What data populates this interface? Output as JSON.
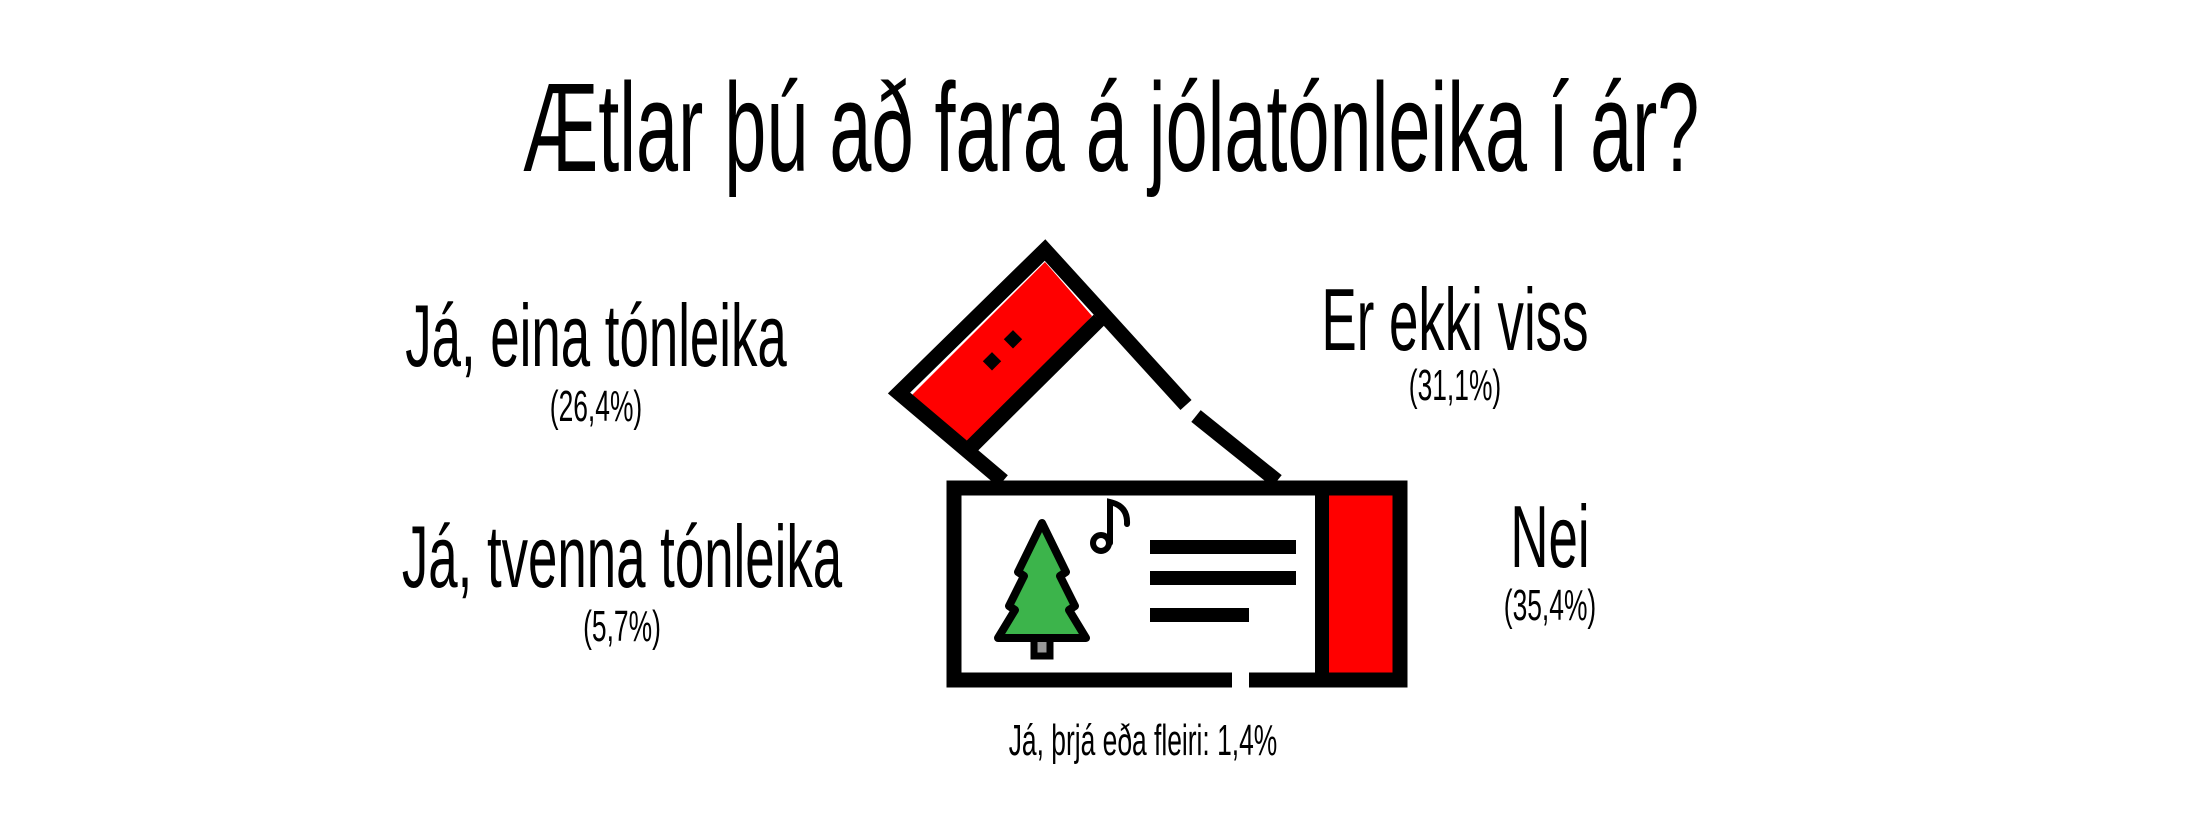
{
  "title": "Ætlar þú að fara á jólatónleika í ár?",
  "answers": [
    {
      "label": "Já, eina tónleika",
      "percent": "(26,4%)"
    },
    {
      "label": "Er ekki viss",
      "percent": "(31,1%)"
    },
    {
      "label": "Já, tvenna tónleika",
      "percent": "(5,7%)"
    },
    {
      "label": "Nei",
      "percent": "(35,4%)"
    }
  ],
  "footnote": "Já, þrjá eða fleiri: 1,4%",
  "icon": "concert-ticket-icon",
  "colors": {
    "red": "#ff0000",
    "green": "#3cb44b",
    "trunk": "#999999",
    "ink": "#000000"
  }
}
